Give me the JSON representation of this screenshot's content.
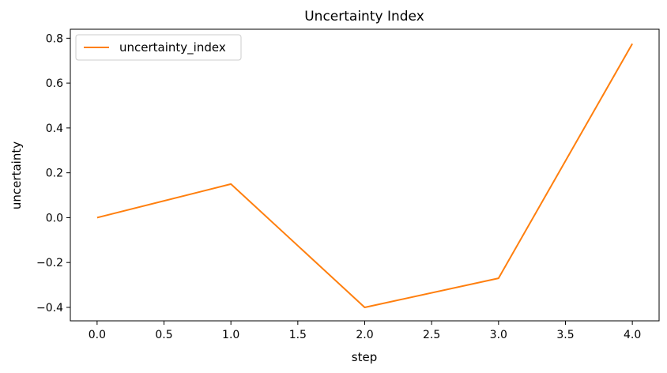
{
  "chart_data": {
    "type": "line",
    "title": "Uncertainty Index",
    "xlabel": "step",
    "ylabel": "uncertainty",
    "xlim": [
      -0.2,
      4.2
    ],
    "ylim": [
      -0.46,
      0.84
    ],
    "xticks": [
      0.0,
      0.5,
      1.0,
      1.5,
      2.0,
      2.5,
      3.0,
      3.5,
      4.0
    ],
    "xtick_labels": [
      "0.0",
      "0.5",
      "1.0",
      "1.5",
      "2.0",
      "2.5",
      "3.0",
      "3.5",
      "4.0"
    ],
    "yticks": [
      -0.4,
      -0.2,
      0.0,
      0.2,
      0.4,
      0.6,
      0.8
    ],
    "ytick_labels": [
      "−0.4",
      "−0.2",
      "0.0",
      "0.2",
      "0.4",
      "0.6",
      "0.8"
    ],
    "grid": false,
    "legend_position": "top-left",
    "series": [
      {
        "name": "uncertainty_index",
        "color": "#ff7f0e",
        "x": [
          0,
          1,
          2,
          3,
          4
        ],
        "y": [
          0.0,
          0.15,
          -0.4,
          -0.27,
          0.775
        ]
      }
    ]
  }
}
